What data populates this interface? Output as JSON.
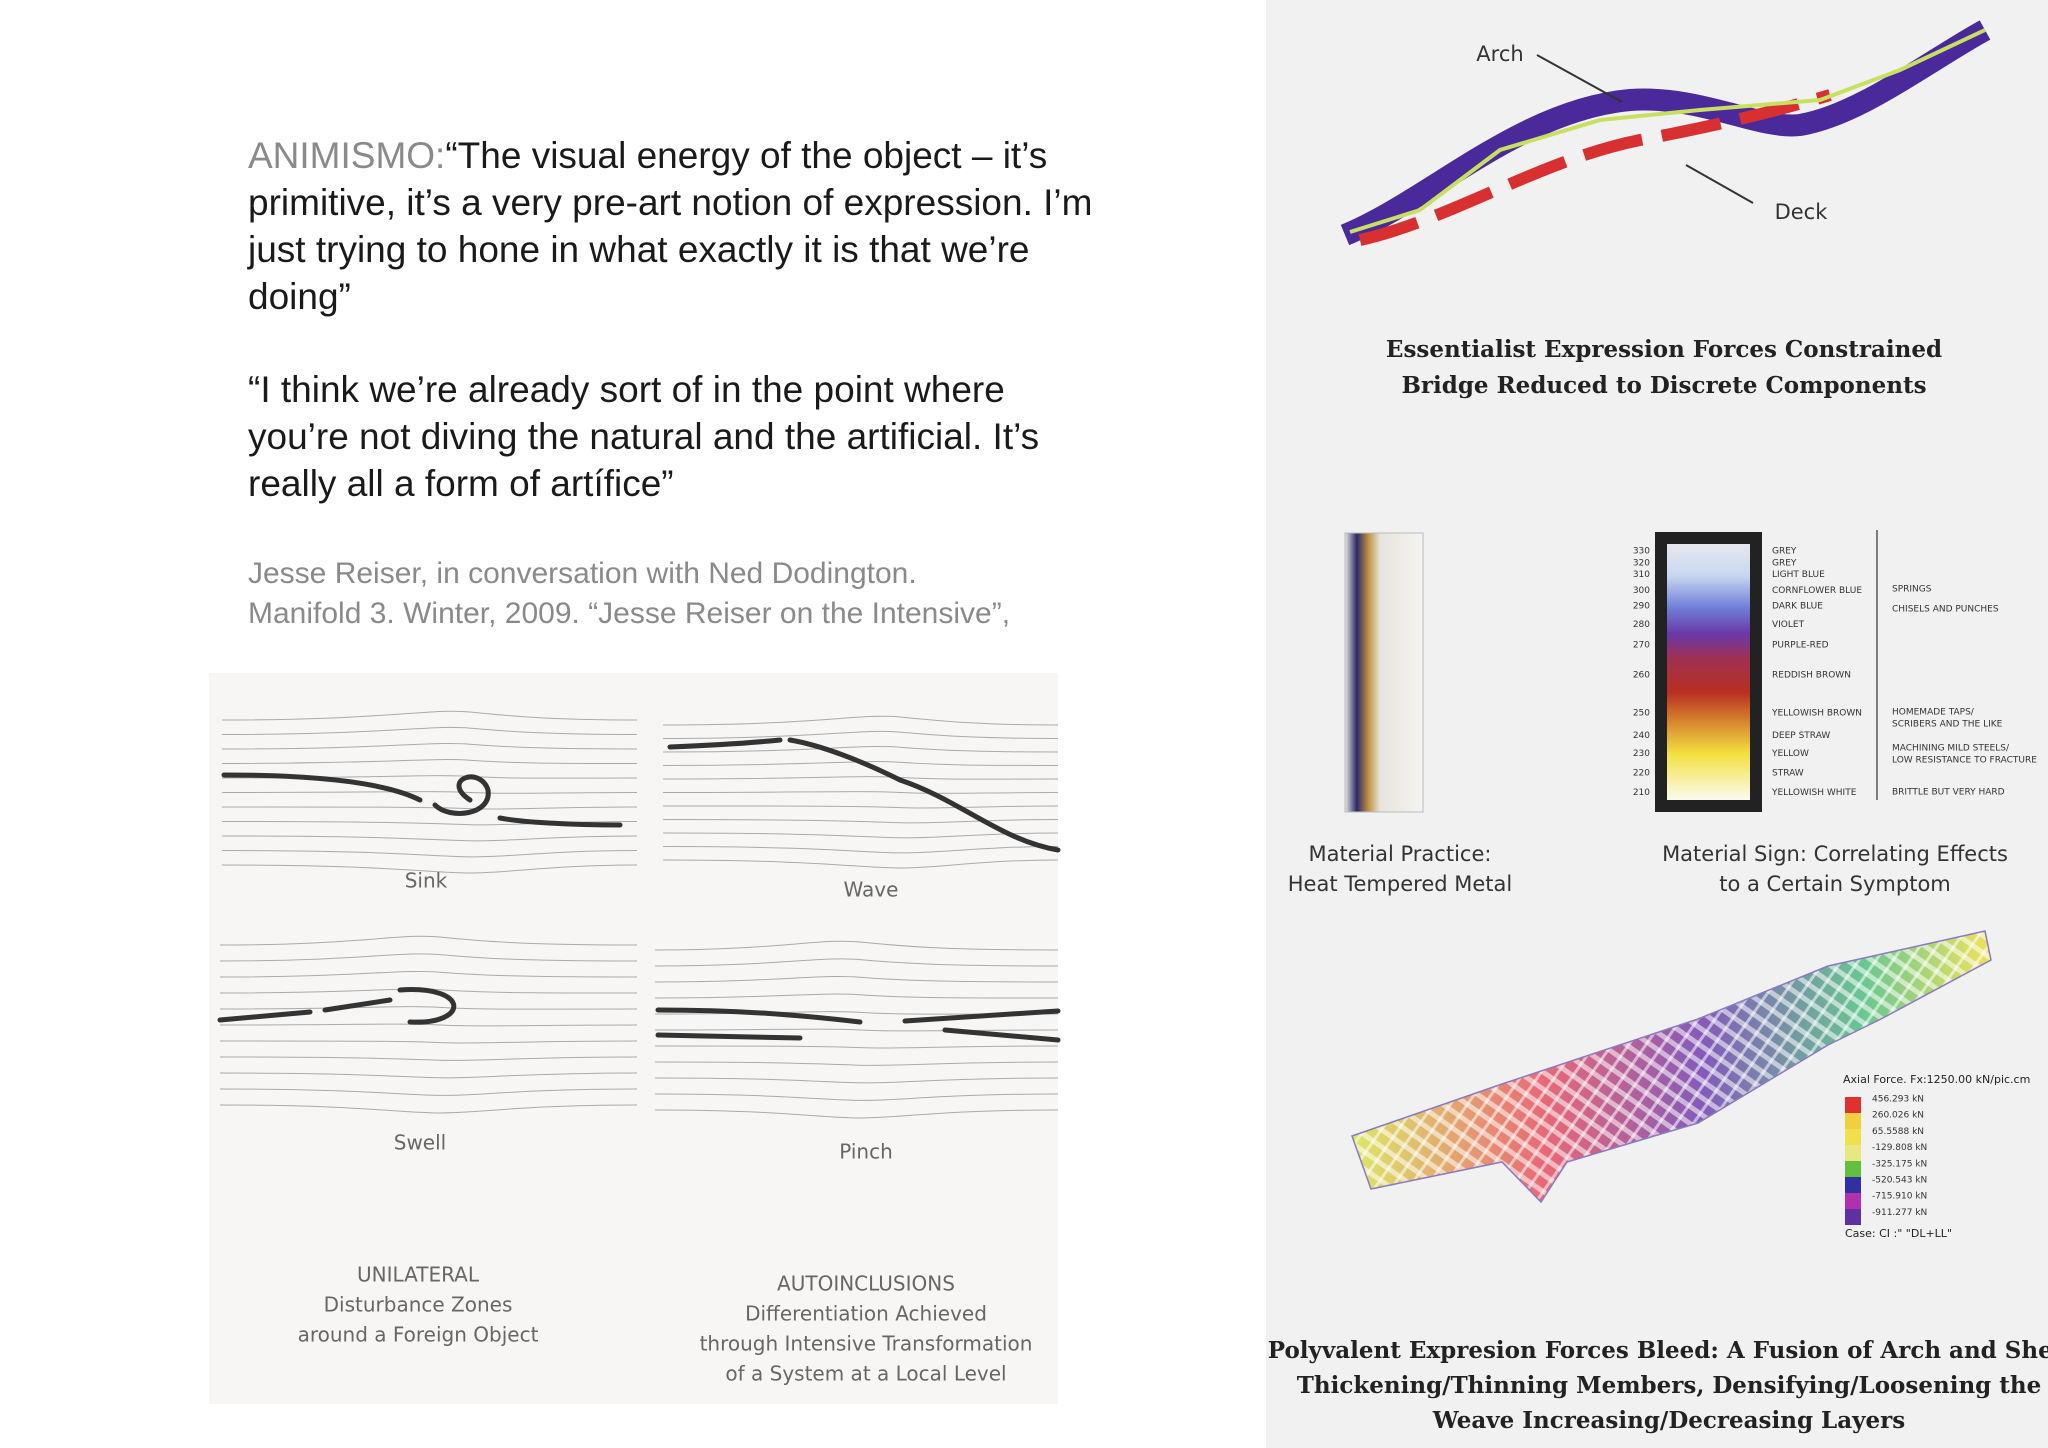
{
  "quote": {
    "label": "ANIMISMO:",
    "lines": [
      "“The visual energy of the object – it’s",
      "primitive, it’s a very pre-art notion of expression. I’m",
      "just trying to hone in what exactly it is that we’re",
      "doing”"
    ]
  },
  "quote_2": {
    "lines": [
      "“I think we’re already sort of in the point where",
      "you’re not diving the natural and the artificial. It’s",
      "really all a form of artífice”"
    ]
  },
  "citation": {
    "lines": [
      "Jesse Reiser, in conversation with Ned Dodington.",
      "Manifold 3. Winter, 2009.  “Jesse Reiser on the Intensive”,"
    ]
  },
  "flow_diagrams": {
    "panels": [
      {
        "label": "Sink"
      },
      {
        "label": "Wave"
      },
      {
        "label": "Swell"
      },
      {
        "label": "Pinch"
      }
    ],
    "captions": [
      {
        "title": "UNILATERAL",
        "lines": [
          "Disturbance Zones",
          "around a Foreign Object"
        ]
      },
      {
        "title": "AUTOINCLUSIONS",
        "lines": [
          "Differentiation Achieved",
          "through Intensive Transformation",
          "of a System at a Local Level"
        ]
      }
    ]
  },
  "bridge": {
    "labels": [
      "Arch",
      "Deck"
    ],
    "caption": [
      "Essentialist Expression Forces Constrained",
      "Bridge Reduced to Discrete Components"
    ]
  },
  "material_practice": {
    "caption": [
      "Material Practice:",
      "Heat Tempered Metal"
    ]
  },
  "material_sign": {
    "caption": [
      "Material Sign: Correlating Effects",
      "to a Certain Symptom"
    ],
    "scale": [
      {
        "temp": 330,
        "color": "GREY"
      },
      {
        "temp": 320,
        "color": "GREY"
      },
      {
        "temp": 310,
        "color": "LIGHT BLUE"
      },
      {
        "temp": 300,
        "color": "CORNFLOWER BLUE"
      },
      {
        "temp": 290,
        "color": "DARK BLUE"
      },
      {
        "temp": 280,
        "color": "VIOLET"
      },
      {
        "temp": 270,
        "color": "PURPLE-RED"
      },
      {
        "temp": 260,
        "color": "REDDISH BROWN"
      },
      {
        "temp": 250,
        "color": "YELLOWISH BROWN"
      },
      {
        "temp": 240,
        "color": "DEEP STRAW"
      },
      {
        "temp": 230,
        "color": "YELLOW"
      },
      {
        "temp": 220,
        "color": "STRAW"
      },
      {
        "temp": 210,
        "color": "YELLOWISH WHITE"
      }
    ],
    "uses": [
      {
        "lines": [
          "SPRINGS"
        ]
      },
      {
        "lines": [
          "CHISELS AND PUNCHES"
        ]
      },
      {
        "lines": [
          "HOMEMADE TAPS/",
          "SCRIBERS AND THE LIKE"
        ]
      },
      {
        "lines": [
          "MACHINING MILD STEELS/",
          "LOW RESISTANCE TO FRACTURE"
        ]
      },
      {
        "lines": [
          "BRITTLE BUT VERY HARD"
        ]
      }
    ]
  },
  "axial_force": {
    "title": "Axial Force. Fx:1250.00 kN/pic.cm",
    "values": [
      "456.293 kN",
      "260.026 kN",
      "65.5588 kN",
      "-129.808 kN",
      "-325.175 kN",
      "-520.543 kN",
      "-715.910 kN",
      "-911.277 kN"
    ],
    "case": "Case: CI :\" \"DL+LL\""
  },
  "bleed": {
    "caption": [
      "Polyvalent Expresion Forces Bleed: A Fusion of Arch and Shell",
      "Thickening/Thinning Members, Densifying/Loosening the",
      "Weave Increasing/Decreasing Layers"
    ]
  }
}
